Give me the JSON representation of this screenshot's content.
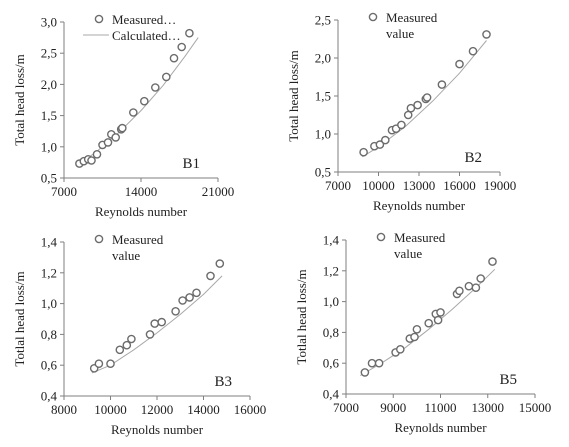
{
  "colors": {
    "marker_edge": "#6b6b6b",
    "curve": "#a8a8a8",
    "axis": "#7f7f7f",
    "text": "#222222"
  },
  "chart_data": [
    {
      "type": "scatter",
      "panel_label": "B1",
      "xlabel": "Reynolds number",
      "ylabel": "Total head loss/m",
      "xlim": [
        7000,
        21000
      ],
      "ylim": [
        0.5,
        3.0
      ],
      "xticks": [
        7000,
        14000,
        21000
      ],
      "xtick_labels": [
        "7000",
        "14000",
        "21000"
      ],
      "yticks": [
        0.5,
        1.0,
        1.5,
        2.0,
        2.5,
        3.0
      ],
      "ytick_labels": [
        "0,5",
        "1,0",
        "1,5",
        "2,0",
        "2,5",
        "3,0"
      ],
      "legend": {
        "position": "top-left",
        "measured": "Measured…",
        "calculated": "Calculated…"
      },
      "series": [
        {
          "name": "Measured…",
          "kind": "markers",
          "x": [
            8400,
            8800,
            9200,
            9500,
            10000,
            10500,
            11000,
            11300,
            11700,
            12200,
            12300,
            13300,
            14300,
            15300,
            16300,
            17000,
            17700,
            18400
          ],
          "y": [
            0.73,
            0.77,
            0.8,
            0.78,
            0.88,
            1.03,
            1.07,
            1.2,
            1.15,
            1.28,
            1.3,
            1.55,
            1.73,
            1.95,
            2.12,
            2.42,
            2.6,
            2.82
          ]
        },
        {
          "name": "Calculated…",
          "kind": "curve",
          "x": [
            8200,
            10000,
            12000,
            14000,
            16000,
            18000,
            19200
          ],
          "y": [
            0.69,
            0.93,
            1.23,
            1.58,
            1.98,
            2.45,
            2.75
          ]
        }
      ]
    },
    {
      "type": "scatter",
      "panel_label": "B2",
      "xlabel": "Reynolds number",
      "ylabel": "Total head loss/m",
      "xlim": [
        7000,
        19000
      ],
      "ylim": [
        0.5,
        2.5
      ],
      "xticks": [
        7000,
        10000,
        13000,
        16000,
        19000
      ],
      "xtick_labels": [
        "7000",
        "10000",
        "13000",
        "16000",
        "19000"
      ],
      "yticks": [
        0.5,
        1.0,
        1.5,
        2.0,
        2.5
      ],
      "ytick_labels": [
        "0,5",
        "1,0",
        "1,5",
        "2,0",
        "2,5"
      ],
      "legend": {
        "position": "top-left",
        "measured": "Measured value"
      },
      "series": [
        {
          "name": "Measured value",
          "kind": "markers",
          "x": [
            8900,
            9700,
            10100,
            10500,
            11000,
            11300,
            11700,
            12200,
            12400,
            12900,
            13500,
            13600,
            14700,
            16000,
            17000,
            18000
          ],
          "y": [
            0.76,
            0.84,
            0.86,
            0.92,
            1.05,
            1.07,
            1.12,
            1.25,
            1.34,
            1.38,
            1.46,
            1.48,
            1.65,
            1.92,
            2.09,
            2.31
          ]
        },
        {
          "name": "",
          "kind": "curve",
          "x": [
            8800,
            10000,
            12000,
            14000,
            16000,
            18000
          ],
          "y": [
            0.7,
            0.83,
            1.1,
            1.43,
            1.8,
            2.23
          ]
        }
      ]
    },
    {
      "type": "scatter",
      "panel_label": "B3",
      "xlabel": "Reynolds number",
      "ylabel": "Totlal head loss/m",
      "xlim": [
        8000,
        16000
      ],
      "ylim": [
        0.4,
        1.4
      ],
      "xticks": [
        8000,
        10000,
        12000,
        14000,
        16000
      ],
      "xtick_labels": [
        "8000",
        "10000",
        "12000",
        "14000",
        "16000"
      ],
      "yticks": [
        0.4,
        0.6,
        0.8,
        1.0,
        1.2,
        1.4
      ],
      "ytick_labels": [
        "0,4",
        "0,6",
        "0,8",
        "1,0",
        "1,2",
        "1,4"
      ],
      "legend": {
        "position": "top-left",
        "measured": "Measured value"
      },
      "series": [
        {
          "name": "Measured value",
          "kind": "markers",
          "x": [
            9300,
            9500,
            10000,
            10400,
            10700,
            10900,
            11700,
            11900,
            12200,
            12800,
            13100,
            13400,
            13700,
            14300,
            14700
          ],
          "y": [
            0.58,
            0.61,
            0.61,
            0.7,
            0.73,
            0.77,
            0.8,
            0.87,
            0.88,
            0.95,
            1.02,
            1.04,
            1.07,
            1.18,
            1.26
          ]
        },
        {
          "name": "",
          "kind": "curve",
          "x": [
            9200,
            10000,
            11000,
            12000,
            13000,
            14000,
            14800
          ],
          "y": [
            0.55,
            0.6,
            0.7,
            0.81,
            0.93,
            1.06,
            1.18
          ]
        }
      ]
    },
    {
      "type": "scatter",
      "panel_label": "B5",
      "xlabel": "Reynolds number",
      "ylabel": "Totlal head loss/m",
      "xlim": [
        7000,
        15000
      ],
      "ylim": [
        0.4,
        1.4
      ],
      "xticks": [
        7000,
        9000,
        11000,
        13000,
        15000
      ],
      "xtick_labels": [
        "7000",
        "9000",
        "11000",
        "13000",
        "15000"
      ],
      "yticks": [
        0.4,
        0.6,
        0.8,
        1.0,
        1.2,
        1.4
      ],
      "ytick_labels": [
        "0,4",
        "0,6",
        "0,8",
        "1,0",
        "1,2",
        "1,4"
      ],
      "legend": {
        "position": "top-left",
        "measured": "Measured value"
      },
      "series": [
        {
          "name": "Measured value",
          "kind": "markers",
          "x": [
            7800,
            8100,
            8400,
            9100,
            9300,
            9700,
            9900,
            10000,
            10500,
            10800,
            10900,
            11000,
            11700,
            11800,
            12200,
            12500,
            12700,
            13200
          ],
          "y": [
            0.54,
            0.6,
            0.6,
            0.67,
            0.69,
            0.76,
            0.77,
            0.82,
            0.86,
            0.92,
            0.88,
            0.93,
            1.05,
            1.07,
            1.1,
            1.09,
            1.15,
            1.26
          ]
        },
        {
          "name": "",
          "kind": "curve",
          "x": [
            7600,
            8500,
            9500,
            10500,
            11500,
            12500,
            13300
          ],
          "y": [
            0.52,
            0.6,
            0.7,
            0.82,
            0.95,
            1.09,
            1.21
          ]
        }
      ]
    }
  ]
}
